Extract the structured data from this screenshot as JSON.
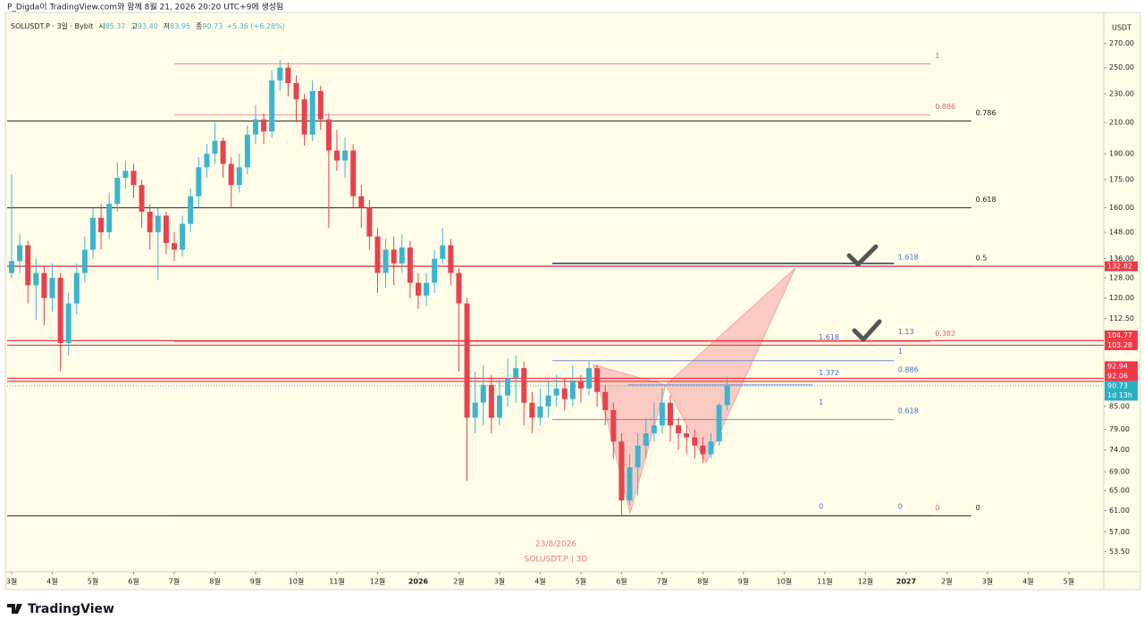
{
  "header": {
    "title": "P_Digda이 TradingView.com와 함께 8월 21, 2026 20:20 UTC+9에 생성됨"
  },
  "footer": {
    "logo": "TradingView"
  },
  "chart_data": {
    "type": "candlestick",
    "symbol": "SOLUSDT.P · 3일 · Bybit",
    "ohlc": [
      {
        "label": "시",
        "value": "85.37"
      },
      {
        "label": "고",
        "value": "93.40"
      },
      {
        "label": "저",
        "value": "83.95"
      },
      {
        "label": "종",
        "value": "90.73"
      }
    ],
    "change": "+5.36 (+6.28%)",
    "unit": "USDT",
    "up_color": "#3cb4d0",
    "down_color": "#e8414f",
    "log_scale": true,
    "x": [
      0,
      0.2,
      0.4,
      0.6,
      0.8,
      1,
      1.2,
      1.4,
      1.6,
      1.8,
      2,
      2.2,
      2.4,
      2.6,
      2.8,
      3,
      3.2,
      3.4,
      3.6,
      3.8,
      4,
      4.2,
      4.4,
      4.6,
      4.8,
      5,
      5.2,
      5.4,
      5.6,
      5.8,
      6,
      6.2,
      6.4,
      6.6,
      6.8,
      7,
      7.2,
      7.4,
      7.6,
      7.8,
      8,
      8.2,
      8.4,
      8.6,
      8.8,
      9,
      9.2,
      9.4,
      9.6,
      9.8,
      10,
      10.2,
      10.4,
      10.6,
      10.8,
      11,
      11.2,
      11.4,
      11.6,
      11.8,
      12,
      12.2,
      12.4,
      12.6,
      12.8,
      13,
      13.2,
      13.4,
      13.6,
      13.8,
      14,
      14.2,
      14.4,
      14.6,
      14.8,
      15,
      15.2,
      15.4,
      15.6,
      15.8,
      16,
      16.2,
      16.4,
      16.6,
      16.8,
      17,
      17.2,
      17.4,
      17.6
    ],
    "open": [
      130,
      135,
      142,
      125,
      130,
      120,
      128,
      104,
      118,
      130,
      140,
      155,
      148,
      162,
      176,
      180,
      172,
      158,
      148,
      156,
      143,
      140,
      152,
      166,
      182,
      190,
      198,
      184,
      172,
      182,
      202,
      212,
      204,
      240,
      250,
      238,
      226,
      202,
      232,
      212,
      192,
      186,
      192,
      166,
      160,
      146,
      130,
      140,
      134,
      141,
      126,
      121,
      126,
      136,
      142,
      130,
      118,
      82,
      86,
      91,
      82,
      88,
      93,
      96,
      86,
      82,
      85,
      88,
      90,
      87,
      92,
      90,
      96,
      89,
      84,
      76,
      63,
      70,
      75,
      78,
      80,
      86,
      80,
      78,
      77,
      75,
      73,
      76,
      85.37
    ],
    "high": [
      178,
      147,
      144,
      136,
      133,
      134,
      130,
      122,
      134,
      146,
      160,
      162,
      168,
      185,
      186,
      184,
      175,
      162,
      160,
      158,
      148,
      156,
      170,
      188,
      196,
      210,
      200,
      188,
      190,
      208,
      222,
      216,
      248,
      256,
      254,
      244,
      230,
      240,
      236,
      216,
      205,
      200,
      196,
      172,
      164,
      150,
      145,
      146,
      147,
      144,
      130,
      130,
      140,
      150,
      145,
      132,
      120,
      95,
      97,
      94,
      93,
      99,
      100,
      98,
      89,
      90,
      92,
      94,
      93,
      97,
      94,
      98,
      97,
      91,
      86,
      78,
      73,
      78,
      82,
      86,
      90,
      88,
      82,
      80,
      79,
      77,
      78,
      86,
      93.4
    ],
    "low": [
      128,
      130,
      118,
      112,
      110,
      115,
      95,
      100,
      114,
      126,
      136,
      140,
      145,
      158,
      170,
      165,
      150,
      140,
      127,
      138,
      135,
      137,
      148,
      160,
      176,
      184,
      176,
      160,
      168,
      178,
      196,
      196,
      200,
      232,
      228,
      210,
      195,
      198,
      205,
      150,
      180,
      176,
      160,
      150,
      140,
      122,
      124,
      125,
      130,
      120,
      116,
      117,
      122,
      134,
      125,
      95,
      67,
      78,
      80,
      78,
      80,
      85,
      86,
      80,
      78,
      80,
      82,
      85,
      84,
      85,
      86,
      88,
      85,
      80,
      72,
      60,
      62,
      64,
      72,
      76,
      78,
      76,
      74,
      73,
      72,
      71,
      72,
      75,
      83.95
    ],
    "close": [
      135,
      142,
      125,
      130,
      120,
      128,
      104,
      118,
      130,
      140,
      155,
      148,
      162,
      176,
      180,
      172,
      158,
      148,
      156,
      143,
      140,
      152,
      166,
      182,
      190,
      198,
      184,
      172,
      182,
      202,
      212,
      204,
      240,
      250,
      238,
      226,
      202,
      232,
      212,
      192,
      186,
      192,
      166,
      160,
      146,
      130,
      140,
      134,
      141,
      126,
      121,
      126,
      136,
      142,
      130,
      118,
      82,
      86,
      91,
      82,
      88,
      93,
      96,
      86,
      82,
      85,
      88,
      90,
      87,
      92,
      90,
      96,
      89,
      84,
      76,
      63,
      70,
      75,
      78,
      80,
      86,
      80,
      78,
      77,
      75,
      73,
      76,
      85.37,
      90.73
    ],
    "xlim": [
      -0.11,
      26.86
    ],
    "xticks": [
      {
        "value": 0,
        "label": "3월"
      },
      {
        "value": 1,
        "label": "4월"
      },
      {
        "value": 2,
        "label": "5월"
      },
      {
        "value": 3,
        "label": "6월"
      },
      {
        "value": 4,
        "label": "7월"
      },
      {
        "value": 5,
        "label": "8월"
      },
      {
        "value": 6,
        "label": "9월"
      },
      {
        "value": 7,
        "label": "10월"
      },
      {
        "value": 8,
        "label": "11월"
      },
      {
        "value": 9,
        "label": "12월"
      },
      {
        "value": 10,
        "label": "2026"
      },
      {
        "value": 11,
        "label": "2월"
      },
      {
        "value": 12,
        "label": "3월"
      },
      {
        "value": 13,
        "label": "4월"
      },
      {
        "value": 14,
        "label": "5월"
      },
      {
        "value": 15,
        "label": "6월"
      },
      {
        "value": 16,
        "label": "7월"
      },
      {
        "value": 17,
        "label": "8월"
      },
      {
        "value": 18,
        "label": "9월"
      },
      {
        "value": 19,
        "label": "10월"
      },
      {
        "value": 20,
        "label": "11월"
      },
      {
        "value": 21,
        "label": "12월"
      },
      {
        "value": 22,
        "label": "2027"
      },
      {
        "value": 23,
        "label": "2월"
      },
      {
        "value": 24,
        "label": "3월"
      },
      {
        "value": 25,
        "label": "4월"
      },
      {
        "value": 26,
        "label": "5월"
      }
    ],
    "ylim": [
      50.2,
      298
    ],
    "yticks": [
      {
        "value": 270,
        "label": "270.00"
      },
      {
        "value": 250,
        "label": "250.00"
      },
      {
        "value": 230,
        "label": "230.00"
      },
      {
        "value": 210,
        "label": "210.00"
      },
      {
        "value": 190,
        "label": "190.00"
      },
      {
        "value": 175,
        "label": "175.00"
      },
      {
        "value": 160,
        "label": "160.00"
      },
      {
        "value": 148,
        "label": "148.00"
      },
      {
        "value": 136,
        "label": "136.00"
      },
      {
        "value": 128,
        "label": "128.00"
      },
      {
        "value": 120,
        "label": "120.00"
      },
      {
        "value": 112.5,
        "label": "112.50"
      },
      {
        "value": 85,
        "label": "85.00"
      },
      {
        "value": 79,
        "label": "79.00"
      },
      {
        "value": 74,
        "label": "74.00"
      },
      {
        "value": 69,
        "label": "69.00"
      },
      {
        "value": 65,
        "label": "65.00"
      },
      {
        "value": 61,
        "label": "61.00"
      },
      {
        "value": 57,
        "label": "57.00"
      },
      {
        "value": 53.5,
        "label": "53.50"
      }
    ],
    "price_lines": [
      132.82,
      104.77,
      103.28,
      92.94,
      92.06
    ],
    "price_line_color": "#f23645",
    "current_price": 90.73,
    "current_color": "#2ab0c5",
    "countdown": "1d 13h",
    "fib_lines": [
      {
        "color": "#f08a8a",
        "text_color": "#e06666",
        "from": 4,
        "to": 22.6,
        "levels": [
          {
            "label": "1",
            "value": 253
          },
          {
            "label": "0.886",
            "value": 215
          },
          {
            "label": "0.382",
            "value": 104.4
          },
          {
            "label": "0",
            "value": 60
          }
        ]
      },
      {
        "color": "#222222",
        "text_color": "#222222",
        "from": -0.11,
        "to": 23.6,
        "levels": [
          {
            "label": "0.786",
            "value": 211
          },
          {
            "label": "0.618",
            "value": 160
          },
          {
            "label": "0.5",
            "value": 132.8
          },
          {
            "label": "0",
            "value": 60
          }
        ]
      }
    ],
    "fib_labels": [
      {
        "color": "#3d6fd9",
        "at": 21.8,
        "levels": [
          {
            "label": "1.618",
            "value": 136.6
          },
          {
            "label": "1.13",
            "value": 107.7
          },
          {
            "label": "1",
            "value": 101.2
          },
          {
            "label": "0.886",
            "value": 95.5
          },
          {
            "label": "0.618",
            "value": 83.8
          },
          {
            "label": "0",
            "value": 61.8
          }
        ]
      },
      {
        "color": "#3d6fd9",
        "at": 19.85,
        "levels": [
          {
            "label": "1.618",
            "value": 106
          },
          {
            "label": "1.372",
            "value": 94.5
          },
          {
            "label": "1",
            "value": 86.1
          },
          {
            "label": "0",
            "value": 61.8
          }
        ]
      }
    ],
    "blue_lines": [
      {
        "color": "#2a2e7a",
        "value": 134,
        "from": 13.3,
        "to": 21.7
      },
      {
        "color": "#6f8fd8",
        "value": 98.3,
        "from": 13.3,
        "to": 21.7
      },
      {
        "color": "#6f8fd8",
        "value": 81.5,
        "from": 13.3,
        "to": 21.7
      },
      {
        "color": "#6f8fd8",
        "value": 91,
        "from": 15.16,
        "to": 19.7
      }
    ],
    "pattern": {
      "color": "#f4a3a3",
      "x": [
        14.31,
        15.21,
        16.09,
        17.08,
        19.27
      ],
      "y": [
        97,
        60.5,
        91,
        71,
        132
      ]
    },
    "watermark": [
      "23/8/2026",
      "SOLUSDT.P | 3D"
    ]
  }
}
